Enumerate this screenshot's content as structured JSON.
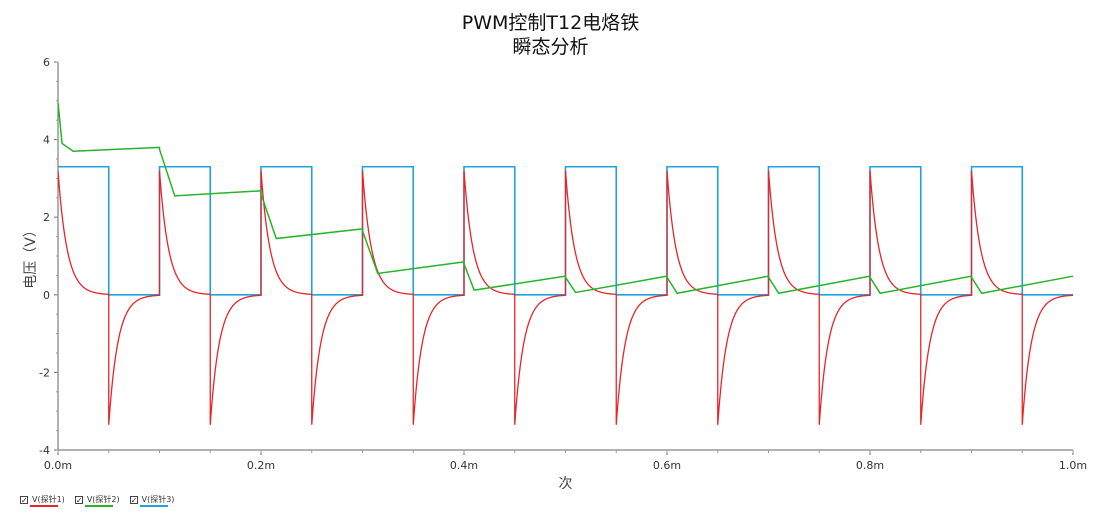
{
  "chart_data": {
    "type": "line",
    "title": "PWM控制T12电烙铁",
    "subtitle": "瞬态分析",
    "xlabel": "次",
    "ylabel": "电压（V）",
    "xlim": [
      0,
      1.0
    ],
    "ylim": [
      -4,
      6
    ],
    "x_ticks": [
      "0.0m",
      "0.2m",
      "0.4m",
      "0.6m",
      "0.8m",
      "1.0m"
    ],
    "y_ticks": [
      "-4",
      "-2",
      "0",
      "2",
      "4",
      "6"
    ],
    "grid": false,
    "legend_position": "bottom-left",
    "period_ms": 0.1,
    "duty": 0.5,
    "series": [
      {
        "name": "V(探针1)",
        "color": "#e8252a",
        "description_values": {
          "rise_peak": 3.2,
          "fall_trough": -3.35
        }
      },
      {
        "name": "V(探针2)",
        "color": "#25b52a",
        "points": [
          [
            0.0,
            4.95
          ],
          [
            0.004,
            3.9
          ],
          [
            0.015,
            3.7
          ],
          [
            0.1,
            3.8
          ],
          [
            0.1,
            3.75
          ],
          [
            0.115,
            2.55
          ],
          [
            0.2,
            2.68
          ],
          [
            0.2,
            2.6
          ],
          [
            0.215,
            1.45
          ],
          [
            0.3,
            1.7
          ],
          [
            0.3,
            1.65
          ],
          [
            0.315,
            0.55
          ],
          [
            0.4,
            0.85
          ],
          [
            0.4,
            0.8
          ],
          [
            0.41,
            0.12
          ],
          [
            0.5,
            0.48
          ],
          [
            0.5,
            0.45
          ],
          [
            0.51,
            0.06
          ],
          [
            0.6,
            0.48
          ],
          [
            0.6,
            0.45
          ],
          [
            0.61,
            0.04
          ],
          [
            0.7,
            0.48
          ],
          [
            0.7,
            0.45
          ],
          [
            0.71,
            0.04
          ],
          [
            0.8,
            0.48
          ],
          [
            0.8,
            0.45
          ],
          [
            0.81,
            0.04
          ],
          [
            0.9,
            0.48
          ],
          [
            0.9,
            0.45
          ],
          [
            0.91,
            0.04
          ],
          [
            1.0,
            0.48
          ]
        ]
      },
      {
        "name": "V(探针3)",
        "color": "#1fa3dc",
        "high": 3.3,
        "low": 0.0
      }
    ]
  }
}
